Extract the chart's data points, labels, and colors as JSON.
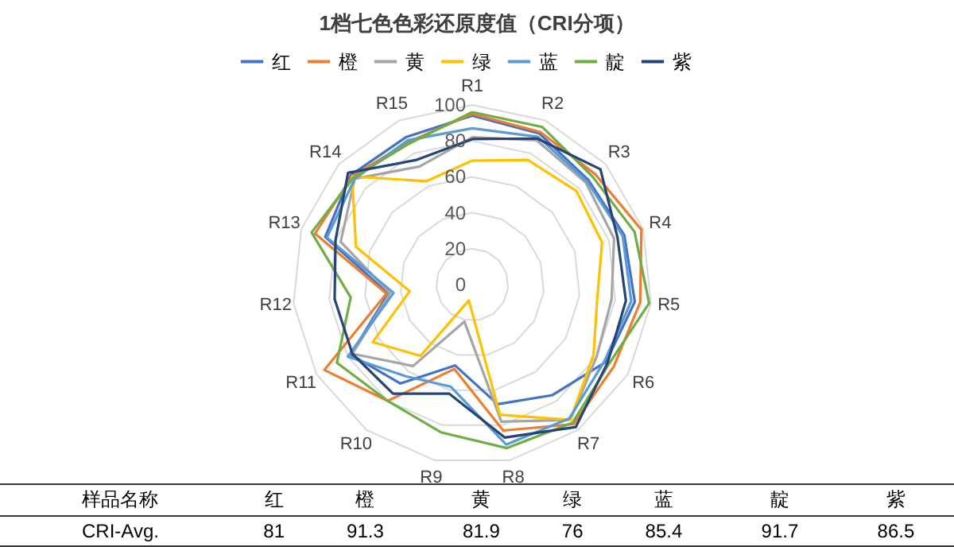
{
  "chart_data": [
    {
      "type": "radar",
      "title": "1档七色色彩还原度值（CRI分项）",
      "categories": [
        "R1",
        "R2",
        "R3",
        "R4",
        "R5",
        "R6",
        "R7",
        "R8",
        "R9",
        "R10",
        "R11",
        "R12",
        "R13",
        "R14",
        "R15"
      ],
      "ylim": [
        0,
        100
      ],
      "yticks": [
        0,
        20,
        40,
        60,
        80,
        100
      ],
      "grid": true,
      "legend": "top",
      "marker": "none",
      "series": [
        {
          "name": "红",
          "color": "#4472c4",
          "values": [
            94,
            92,
            87,
            89,
            91,
            86,
            76,
            68,
            46,
            68,
            78,
            47,
            86,
            91,
            90
          ]
        },
        {
          "name": "橙",
          "color": "#ed7d31",
          "values": [
            95,
            93,
            92,
            99,
            94,
            91,
            96,
            83,
            48,
            80,
            95,
            48,
            92,
            90,
            87
          ]
        },
        {
          "name": "黄",
          "color": "#a5a5a5",
          "values": [
            82,
            88,
            85,
            83,
            78,
            80,
            93,
            78,
            21,
            56,
            77,
            46,
            77,
            88,
            72
          ]
        },
        {
          "name": "绿",
          "color": "#ffc000",
          "values": [
            69,
            76,
            78,
            76,
            70,
            78,
            93,
            74,
            9,
            49,
            64,
            35,
            68,
            90,
            63
          ]
        },
        {
          "name": "蓝",
          "color": "#5b9bd5",
          "values": [
            87,
            90,
            86,
            88,
            89,
            85,
            92,
            91,
            58,
            63,
            80,
            44,
            85,
            88,
            88
          ]
        },
        {
          "name": "靛",
          "color": "#70ad47",
          "values": [
            96,
            96,
            90,
            95,
            99,
            88,
            95,
            93,
            84,
            80,
            87,
            68,
            94,
            89,
            86
          ]
        },
        {
          "name": "紫",
          "color": "#264478",
          "values": [
            81,
            89,
            96,
            85,
            86,
            87,
            98,
            87,
            62,
            75,
            77,
            77,
            80,
            93,
            76
          ]
        }
      ]
    },
    {
      "type": "other",
      "xlabel": "样品名称",
      "ylabel": "CRI-Avg.",
      "categories": [
        "红",
        "橙",
        "黄",
        "绿",
        "蓝",
        "靛",
        "紫"
      ],
      "values": [
        81,
        91.3,
        81.9,
        76,
        85.4,
        91.7,
        86.5
      ],
      "data_labels": true
    }
  ]
}
